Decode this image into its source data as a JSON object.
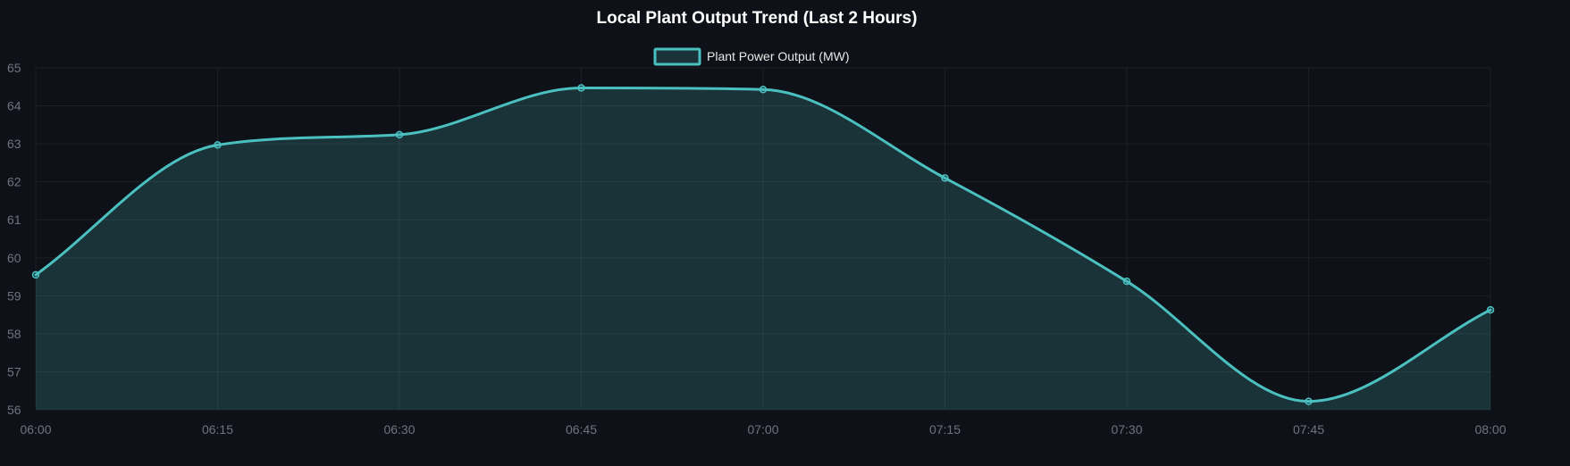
{
  "chart_data": {
    "type": "line",
    "title": "Local Plant Output Trend (Last 2 Hours)",
    "xlabel": "",
    "ylabel": "",
    "categories": [
      "06:00",
      "06:15",
      "06:30",
      "06:45",
      "07:00",
      "07:15",
      "07:30",
      "07:45",
      "08:00"
    ],
    "series": [
      {
        "name": "Plant Power Output (MW)",
        "values": [
          59.55,
          62.97,
          63.24,
          64.47,
          64.43,
          62.1,
          59.38,
          56.22,
          58.63
        ],
        "color": "#4bc0c0",
        "fill": "rgba(75,192,192,0.2)",
        "smooth": true,
        "area": true
      }
    ],
    "ylim": [
      56,
      65
    ],
    "yticks": [
      "56",
      "57",
      "58",
      "59",
      "60",
      "61",
      "62",
      "63",
      "64",
      "65"
    ],
    "grid": true,
    "legend": "top-center"
  },
  "colors": {
    "background": "#0e1117",
    "grid": "#1c2027",
    "tick_text": "#6f747c",
    "title_text": "#ffffff"
  }
}
